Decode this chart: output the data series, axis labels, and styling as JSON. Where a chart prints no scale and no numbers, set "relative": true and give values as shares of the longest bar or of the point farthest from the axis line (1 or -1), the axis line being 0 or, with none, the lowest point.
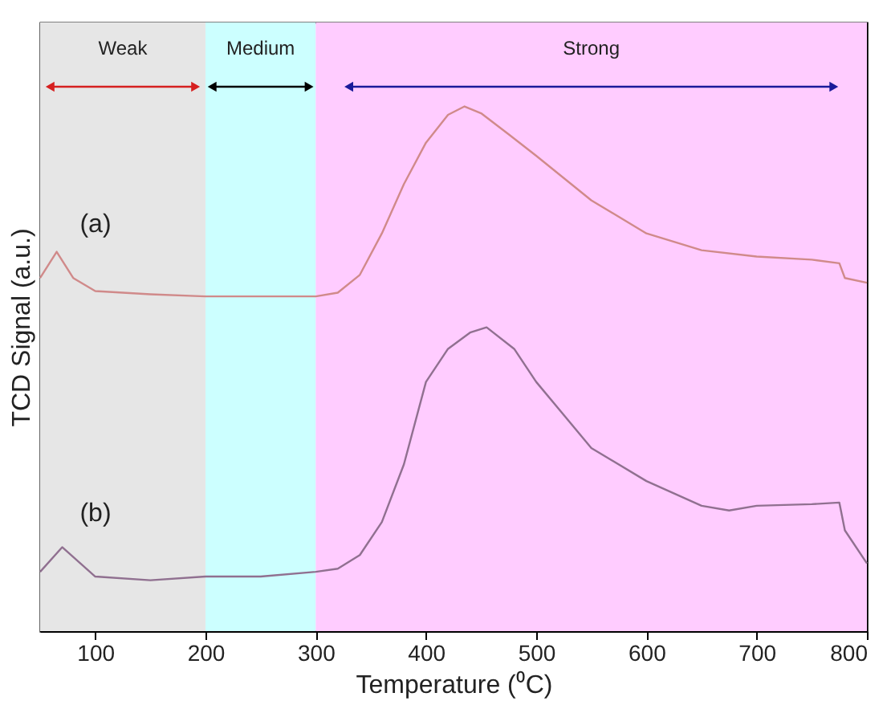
{
  "chart_data": {
    "type": "line",
    "relative": true,
    "xlabel": "Temperature (⁰C)",
    "ylabel": "TCD Signal (a.u.)",
    "xlim": [
      50,
      800
    ],
    "xticks": [
      100,
      200,
      300,
      400,
      500,
      600,
      700,
      800
    ],
    "grid": false,
    "x": [
      50,
      65,
      80,
      100,
      150,
      200,
      300,
      320,
      340,
      360,
      380,
      400,
      420,
      435,
      450,
      475,
      500,
      550,
      600,
      650,
      700,
      750,
      775,
      780,
      800
    ],
    "series": [
      {
        "color": "#d08a8a",
        "values": [
          0.673,
          0.723,
          0.673,
          0.648,
          0.642,
          0.638,
          0.638,
          0.645,
          0.679,
          0.758,
          0.852,
          0.931,
          0.984,
          1.0,
          0.987,
          0.947,
          0.906,
          0.821,
          0.758,
          0.726,
          0.714,
          0.708,
          0.701,
          0.673,
          0.664
        ]
      },
      {
        "color": "#907090",
        "x": [
          50,
          70,
          100,
          150,
          200,
          250,
          300,
          320,
          340,
          360,
          380,
          400,
          420,
          440,
          455,
          480,
          500,
          550,
          600,
          650,
          675,
          700,
          750,
          775,
          780,
          800
        ],
        "values": [
          0.113,
          0.16,
          0.104,
          0.097,
          0.104,
          0.104,
          0.113,
          0.119,
          0.145,
          0.208,
          0.318,
          0.475,
          0.538,
          0.569,
          0.579,
          0.538,
          0.475,
          0.349,
          0.286,
          0.239,
          0.23,
          0.239,
          0.242,
          0.245,
          0.192,
          0.129
        ]
      }
    ],
    "bands": [
      {
        "axis": "x",
        "from": 50,
        "to": 200,
        "label": "Weak",
        "color": "#e6e6e6"
      },
      {
        "axis": "x",
        "from": 200,
        "to": 300,
        "label": "Medium",
        "color": "#ccffff"
      },
      {
        "axis": "x",
        "from": 300,
        "to": 800,
        "label": "Strong",
        "color": "#ffccff"
      }
    ],
    "annotations": [
      "(a)",
      "(b)"
    ]
  }
}
